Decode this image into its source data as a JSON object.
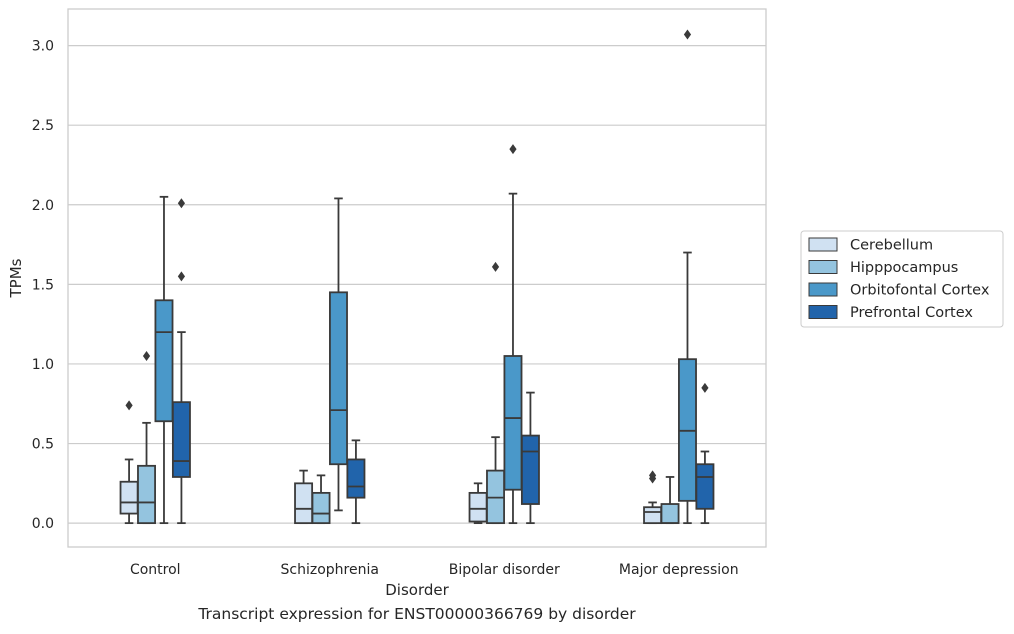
{
  "caption": "Transcript expression for ENST00000366769 by disorder",
  "chart_data": {
    "type": "box",
    "xlabel": "Disorder",
    "ylabel": "TPMs",
    "ylim": [
      -0.15,
      3.23
    ],
    "yticks": [
      0.0,
      0.5,
      1.0,
      1.5,
      2.0,
      2.5,
      3.0
    ],
    "ytick_labels": [
      "0.0",
      "0.5",
      "1.0",
      "1.5",
      "2.0",
      "2.5",
      "3.0"
    ],
    "grid": "horizontal",
    "legend_position": "right",
    "categories": [
      "Control",
      "Schizophrenia",
      "Bipolar disorder",
      "Major depression"
    ],
    "series": [
      {
        "name": "Cerebellum",
        "color": "#d0e1f2",
        "boxes": [
          {
            "whislo": 0.0,
            "q1": 0.06,
            "med": 0.13,
            "q3": 0.26,
            "whishi": 0.4,
            "fliers": [
              0.74
            ]
          },
          {
            "whislo": 0.0,
            "q1": 0.0,
            "med": 0.09,
            "q3": 0.25,
            "whishi": 0.33,
            "fliers": []
          },
          {
            "whislo": 0.0,
            "q1": 0.01,
            "med": 0.09,
            "q3": 0.19,
            "whishi": 0.25,
            "fliers": []
          },
          {
            "whislo": 0.0,
            "q1": 0.0,
            "med": 0.07,
            "q3": 0.1,
            "whishi": 0.13,
            "fliers": [
              0.28,
              0.3
            ]
          }
        ]
      },
      {
        "name": "Hipppocampus",
        "color": "#94c4df",
        "boxes": [
          {
            "whislo": 0.0,
            "q1": 0.0,
            "med": 0.13,
            "q3": 0.36,
            "whishi": 0.63,
            "fliers": [
              1.05
            ]
          },
          {
            "whislo": 0.0,
            "q1": 0.0,
            "med": 0.06,
            "q3": 0.19,
            "whishi": 0.3,
            "fliers": []
          },
          {
            "whislo": 0.0,
            "q1": 0.0,
            "med": 0.16,
            "q3": 0.33,
            "whishi": 0.54,
            "fliers": [
              1.61
            ]
          },
          {
            "whislo": 0.0,
            "q1": 0.0,
            "med": 0.0,
            "q3": 0.12,
            "whishi": 0.29,
            "fliers": []
          }
        ]
      },
      {
        "name": "Orbitofontal Cortex",
        "color": "#4a98c9",
        "boxes": [
          {
            "whislo": 0.0,
            "q1": 0.64,
            "med": 1.2,
            "q3": 1.4,
            "whishi": 2.05,
            "fliers": []
          },
          {
            "whislo": 0.08,
            "q1": 0.37,
            "med": 0.71,
            "q3": 1.45,
            "whishi": 2.04,
            "fliers": []
          },
          {
            "whislo": 0.0,
            "q1": 0.21,
            "med": 0.66,
            "q3": 1.05,
            "whishi": 2.07,
            "fliers": [
              2.35
            ]
          },
          {
            "whislo": 0.0,
            "q1": 0.14,
            "med": 0.58,
            "q3": 1.03,
            "whishi": 1.7,
            "fliers": [
              3.07
            ]
          }
        ]
      },
      {
        "name": "Prefrontal Cortex",
        "color": "#2164ab",
        "boxes": [
          {
            "whislo": 0.0,
            "q1": 0.29,
            "med": 0.39,
            "q3": 0.76,
            "whishi": 1.2,
            "fliers": [
              1.55,
              2.01
            ]
          },
          {
            "whislo": 0.0,
            "q1": 0.16,
            "med": 0.23,
            "q3": 0.4,
            "whishi": 0.52,
            "fliers": []
          },
          {
            "whislo": 0.0,
            "q1": 0.12,
            "med": 0.45,
            "q3": 0.55,
            "whishi": 0.82,
            "fliers": []
          },
          {
            "whislo": 0.0,
            "q1": 0.09,
            "med": 0.29,
            "q3": 0.37,
            "whishi": 0.45,
            "fliers": [
              0.85
            ]
          }
        ]
      }
    ]
  }
}
